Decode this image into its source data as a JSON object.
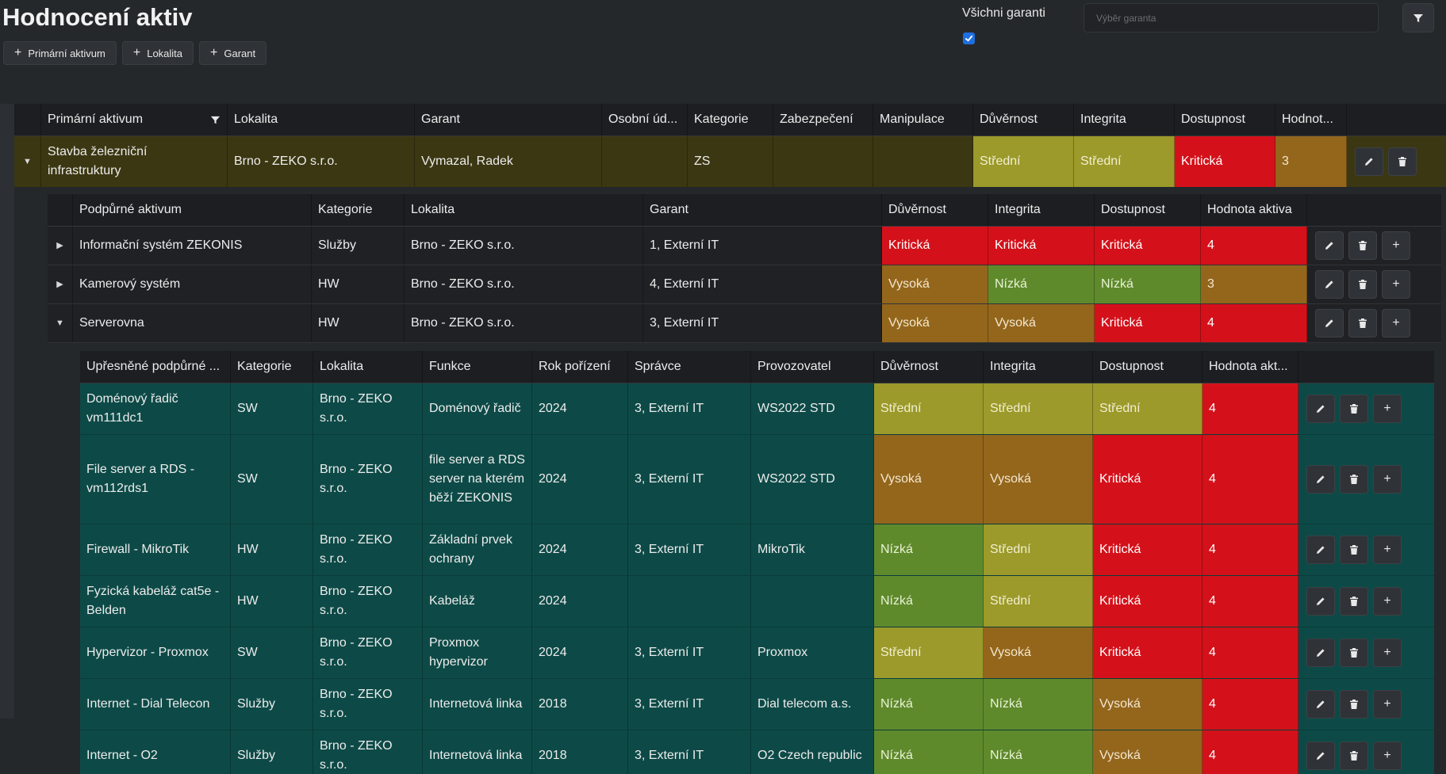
{
  "header": {
    "title": "Hodnocení aktiv",
    "buttons": [
      "Primární aktivum",
      "Lokalita",
      "Garant"
    ],
    "guarantors_label": "Všichni garanti",
    "guarantor_placeholder": "Výběr garanta"
  },
  "colors": {
    "Střední": "#9b9a2a",
    "Vysoká": "#93661c",
    "Kritická": "#d4111a",
    "Nízká": "#5f8a2c"
  },
  "primary": {
    "headers": [
      "Primární aktivum",
      "Lokalita",
      "Garant",
      "Osobní úd...",
      "Kategorie",
      "Zabezpečení",
      "Manipulace",
      "Důvěrnost",
      "Integrita",
      "Dostupnost",
      "Hodnot..."
    ],
    "row": {
      "name": "Stavba železniční infrastruktury",
      "location": "Brno - ZEKO s.r.o.",
      "guarantor": "Vymazal, Radek",
      "personal": "",
      "category": "ZS",
      "security": "",
      "handling": "",
      "confidentiality": "Střední",
      "integrity": "Střední",
      "availability": "Kritická",
      "value": "3"
    }
  },
  "supporting": {
    "headers": [
      "Podpůrné aktivum",
      "Kategorie",
      "Lokalita",
      "Garant",
      "Důvěrnost",
      "Integrita",
      "Dostupnost",
      "Hodnota aktiva"
    ],
    "rows": [
      {
        "name": "Informační systém ZEKONIS",
        "category": "Služby",
        "location": "Brno - ZEKO s.r.o.",
        "guarantor": "1, Externí IT",
        "c": "Kritická",
        "i": "Kritická",
        "a": "Kritická",
        "value": "4",
        "expanded": false
      },
      {
        "name": "Kamerový systém",
        "category": "HW",
        "location": "Brno - ZEKO s.r.o.",
        "guarantor": "4, Externí IT",
        "c": "Vysoká",
        "i": "Nízká",
        "a": "Nízká",
        "value": "3",
        "expanded": false
      },
      {
        "name": "Serverovna",
        "category": "HW",
        "location": "Brno - ZEKO s.r.o.",
        "guarantor": "3, Externí IT",
        "c": "Vysoká",
        "i": "Vysoká",
        "a": "Kritická",
        "value": "4",
        "expanded": true
      }
    ]
  },
  "detailed": {
    "headers": [
      "Upřesněné podpůrné ...",
      "Kategorie",
      "Lokalita",
      "Funkce",
      "Rok pořízení",
      "Správce",
      "Provozovatel",
      "Důvěrnost",
      "Integrita",
      "Dostupnost",
      "Hodnota akt..."
    ],
    "rows": [
      {
        "name": "Doménový řadič vm111dc1",
        "category": "SW",
        "location": "Brno - ZEKO s.r.o.",
        "function": "Doménový řadič",
        "year": "2024",
        "admin": "3, Externí IT",
        "operator": "WS2022 STD",
        "c": "Střední",
        "i": "Střední",
        "a": "Střední",
        "value": "4"
      },
      {
        "name": "File server a RDS - vm112rds1",
        "category": "SW",
        "location": "Brno - ZEKO s.r.o.",
        "function": "file server a RDS server na kterém běží ZEKONIS",
        "year": "2024",
        "admin": "3, Externí IT",
        "operator": "WS2022 STD",
        "c": "Vysoká",
        "i": "Vysoká",
        "a": "Kritická",
        "value": "4"
      },
      {
        "name": "Firewall - MikroTik",
        "category": "HW",
        "location": "Brno - ZEKO s.r.o.",
        "function": "Základní prvek ochrany",
        "year": "2024",
        "admin": "3, Externí IT",
        "operator": "MikroTik",
        "c": "Nízká",
        "i": "Střední",
        "a": "Kritická",
        "value": "4"
      },
      {
        "name": "Fyzická kabeláž cat5e - Belden",
        "category": "HW",
        "location": "Brno - ZEKO s.r.o.",
        "function": "Kabeláž",
        "year": "2024",
        "admin": "",
        "operator": "",
        "c": "Nízká",
        "i": "Střední",
        "a": "Kritická",
        "value": "4"
      },
      {
        "name": "Hypervizor - Proxmox",
        "category": "SW",
        "location": "Brno - ZEKO s.r.o.",
        "function": "Proxmox hypervizor",
        "year": "2024",
        "admin": "3, Externí IT",
        "operator": "Proxmox",
        "c": "Střední",
        "i": "Vysoká",
        "a": "Kritická",
        "value": "4"
      },
      {
        "name": "Internet - Dial Telecon",
        "category": "Služby",
        "location": "Brno - ZEKO s.r.o.",
        "function": "Internetová linka",
        "year": "2018",
        "admin": "3, Externí IT",
        "operator": "Dial telecom a.s.",
        "c": "Nízká",
        "i": "Nízká",
        "a": "Vysoká",
        "value": "4"
      },
      {
        "name": "Internet - O2",
        "category": "Služby",
        "location": "Brno - ZEKO s.r.o.",
        "function": "Internetová linka",
        "year": "2018",
        "admin": "3, Externí IT",
        "operator": "O2 Czech republic",
        "c": "Nízká",
        "i": "Nízká",
        "a": "Vysoká",
        "value": "4"
      }
    ]
  }
}
